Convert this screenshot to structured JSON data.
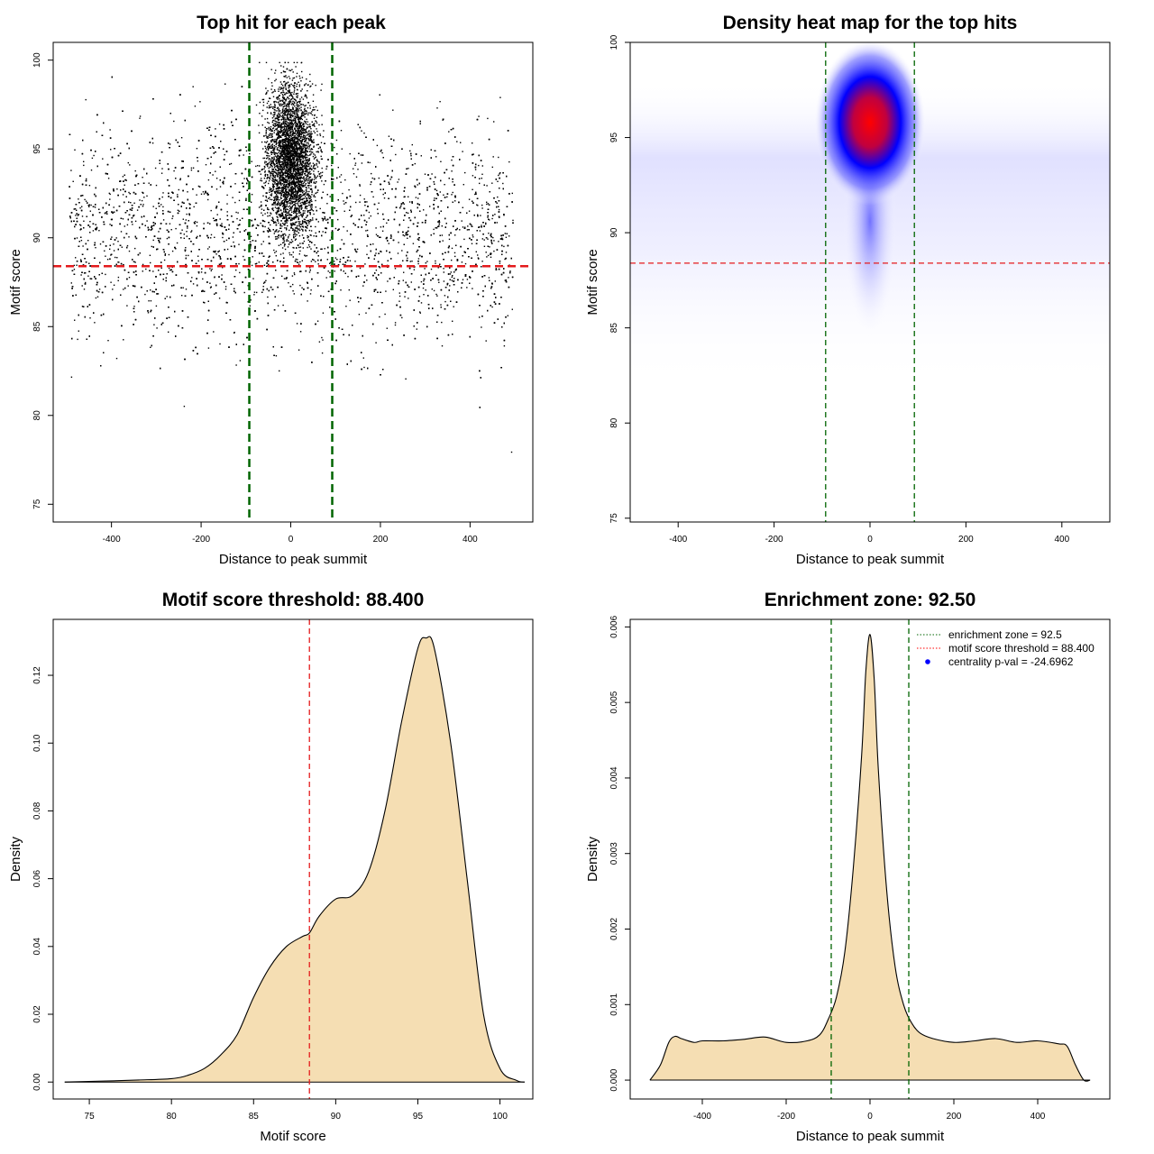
{
  "chart_data": [
    {
      "id": "scatter",
      "type": "scatter",
      "title": "Top hit for each peak",
      "xlabel": "Distance to peak summit",
      "ylabel": "Motif score",
      "xlim": [
        -530,
        540
      ],
      "ylim": [
        74,
        101
      ],
      "xticks": [
        -400,
        -200,
        0,
        200,
        400
      ],
      "yticks": [
        75,
        80,
        85,
        90,
        95,
        100
      ],
      "vlines": [
        -92.5,
        92.5
      ],
      "hline": 88.4,
      "point_density": "dense cloud between x=-500 and 500, scores 80-100, concentrated near x=0 and scores 88-99"
    },
    {
      "id": "heatmap",
      "type": "heatmap",
      "title": "Density heat map for the top hits",
      "xlabel": "Distance to peak summit",
      "ylabel": "Motif score",
      "xlim": [
        -500,
        500
      ],
      "ylim": [
        74.8,
        100
      ],
      "xticks": [
        -400,
        -200,
        0,
        200,
        400
      ],
      "yticks": [
        75,
        80,
        85,
        90,
        95,
        100
      ],
      "vlines": [
        -92.5,
        92.5
      ],
      "hline": 88.4,
      "peak": {
        "x": 0,
        "y": 95.8
      }
    },
    {
      "id": "score_density",
      "type": "area",
      "title": "Motif score threshold: 88.400",
      "xlabel": "Motif score",
      "ylabel": "Density",
      "xlim": [
        72.8,
        102
      ],
      "ylim": [
        -0.005,
        0.1365
      ],
      "xticks": [
        75,
        80,
        85,
        90,
        95,
        100
      ],
      "yticks": [
        0.0,
        0.02,
        0.04,
        0.06,
        0.08,
        0.1,
        0.12
      ],
      "ytick_labels": [
        "0.00",
        "0.02",
        "0.04",
        "0.06",
        "0.08",
        "0.10",
        "0.12"
      ],
      "vline": 88.4,
      "x": [
        73.5,
        76,
        78,
        80,
        81,
        82,
        83,
        84,
        85,
        86,
        87,
        88,
        88.4,
        89,
        90,
        91,
        92,
        93,
        94,
        95,
        95.5,
        96,
        97,
        98,
        99,
        100,
        101,
        101.5
      ],
      "y": [
        0.0,
        0.0003,
        0.0006,
        0.001,
        0.002,
        0.004,
        0.008,
        0.014,
        0.025,
        0.034,
        0.04,
        0.043,
        0.044,
        0.049,
        0.054,
        0.055,
        0.062,
        0.08,
        0.106,
        0.128,
        0.131,
        0.128,
        0.1,
        0.06,
        0.02,
        0.004,
        0.0005,
        0.0
      ]
    },
    {
      "id": "distance_density",
      "type": "area",
      "title": "Enrichment zone: 92.50",
      "xlabel": "Distance to peak summit",
      "ylabel": "Density",
      "xlim": [
        -572,
        572
      ],
      "ylim": [
        -0.00025,
        0.0061
      ],
      "xticks": [
        -400,
        -200,
        0,
        200,
        400
      ],
      "yticks": [
        0.0,
        0.001,
        0.002,
        0.003,
        0.004,
        0.005,
        0.006
      ],
      "ytick_labels": [
        "0.000",
        "0.001",
        "0.002",
        "0.003",
        "0.004",
        "0.005",
        "0.006"
      ],
      "vlines": [
        -92.5,
        92.5
      ],
      "x": [
        -525,
        -500,
        -480,
        -465,
        -450,
        -420,
        -400,
        -350,
        -300,
        -250,
        -200,
        -150,
        -120,
        -100,
        -80,
        -60,
        -40,
        -20,
        -10,
        0,
        10,
        20,
        40,
        60,
        80,
        100,
        120,
        150,
        200,
        250,
        300,
        350,
        400,
        450,
        470,
        490,
        510,
        525
      ],
      "y": [
        0.0,
        0.0002,
        0.0005,
        0.00058,
        0.00055,
        0.0005,
        0.00052,
        0.00052,
        0.00054,
        0.00057,
        0.0005,
        0.00052,
        0.0006,
        0.0008,
        0.0011,
        0.0017,
        0.0028,
        0.0043,
        0.0054,
        0.0059,
        0.0053,
        0.0041,
        0.0025,
        0.0015,
        0.001,
        0.00075,
        0.00062,
        0.00055,
        0.0005,
        0.00052,
        0.00055,
        0.0005,
        0.00052,
        0.00048,
        0.00045,
        0.0002,
        0.0,
        0.0
      ],
      "legend": [
        {
          "label": "enrichment zone = 92.5",
          "style": "dotted",
          "color": "#006400"
        },
        {
          "label": "motif score threshold = 88.400",
          "style": "dotted",
          "color": "#ff0000"
        },
        {
          "label": "centrality p-val = -24.6962",
          "style": "point",
          "color": "#0000ff"
        }
      ]
    }
  ],
  "colors": {
    "threshold": "#e41a1c",
    "zone": "#006400",
    "fill": "#f5deb3",
    "points": "#000000",
    "heat_low": "#ffffff",
    "heat_mid": "#0000ff",
    "heat_high": "#ff0000"
  }
}
